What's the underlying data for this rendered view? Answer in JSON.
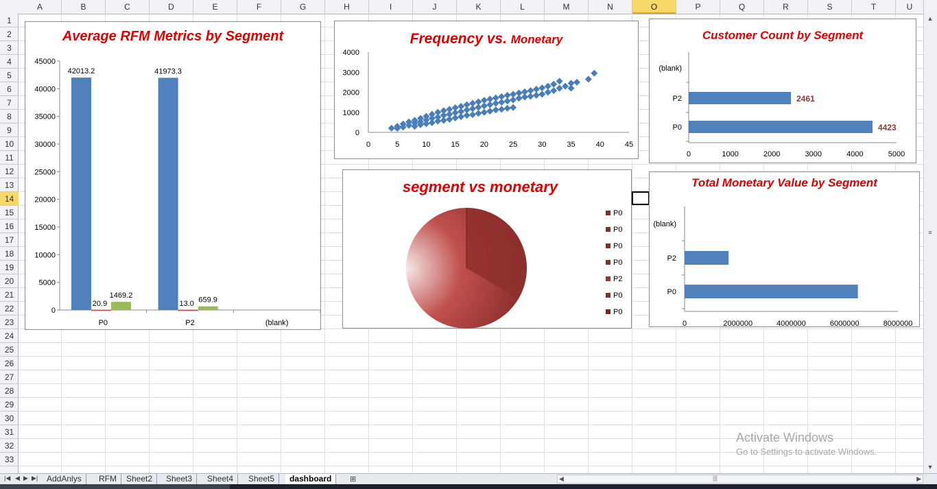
{
  "columns": [
    "A",
    "B",
    "C",
    "D",
    "E",
    "F",
    "G",
    "H",
    "I",
    "J",
    "K",
    "L",
    "M",
    "N",
    "O",
    "P",
    "Q",
    "R",
    "S",
    "T",
    "U"
  ],
  "selected_column": "O",
  "rows": [
    "1",
    "2",
    "3",
    "4",
    "5",
    "6",
    "7",
    "8",
    "9",
    "10",
    "11",
    "12",
    "13",
    "14",
    "15",
    "16",
    "17",
    "18",
    "19",
    "20",
    "21",
    "22",
    "23",
    "24",
    "25",
    "26",
    "27",
    "28",
    "29",
    "30",
    "31",
    "32",
    "33"
  ],
  "selected_row": "14",
  "sheet_tabs": [
    "AddAnlys",
    "RFM",
    "Sheet2",
    "Sheet3",
    "Sheet4",
    "Sheet5",
    "dashboard"
  ],
  "active_tab": "dashboard",
  "tab_nav_icons": [
    "first-sheet-icon",
    "prev-sheet-icon",
    "next-sheet-icon",
    "last-sheet-icon"
  ],
  "watermark": {
    "line1": "Activate Windows",
    "line2": "Go to Settings to activate Windows."
  },
  "chart_data": [
    {
      "type": "bar",
      "title": "Average RFM Metrics by Segment",
      "categories": [
        "P0",
        "P2",
        "(blank)"
      ],
      "series": [
        {
          "color": "#4f81bd",
          "values": [
            42013.2,
            41973.3,
            null
          ]
        },
        {
          "color": "#c0504d",
          "values": [
            20.9,
            13.0,
            null
          ]
        },
        {
          "color": "#9bbb59",
          "values": [
            1469.2,
            659.9,
            null
          ]
        }
      ],
      "data_labels": [
        [
          "42013.2",
          "20.9",
          "1469.2"
        ],
        [
          "41973.3",
          "13.0",
          "659.9"
        ]
      ],
      "yticks": [
        "0",
        "5000",
        "10000",
        "15000",
        "20000",
        "25000",
        "30000",
        "35000",
        "40000",
        "45000"
      ],
      "ylim": [
        0,
        45000
      ]
    },
    {
      "type": "scatter",
      "title_main": "Frequency vs.",
      "title_tail": "Monetary",
      "xticks": [
        "0",
        "5",
        "10",
        "15",
        "20",
        "25",
        "30",
        "35",
        "40",
        "45"
      ],
      "yticks": [
        "0",
        "1000",
        "2000",
        "3000",
        "4000"
      ],
      "xlim": [
        0,
        45
      ],
      "ylim": [
        0,
        4000
      ],
      "color": "#4a7ebb",
      "points": [
        [
          4,
          210
        ],
        [
          5,
          200
        ],
        [
          5,
          300
        ],
        [
          6,
          260
        ],
        [
          6,
          420
        ],
        [
          7,
          350
        ],
        [
          7,
          520
        ],
        [
          8,
          300
        ],
        [
          8,
          460
        ],
        [
          8,
          600
        ],
        [
          9,
          380
        ],
        [
          9,
          520
        ],
        [
          9,
          700
        ],
        [
          10,
          430
        ],
        [
          10,
          620
        ],
        [
          10,
          800
        ],
        [
          11,
          480
        ],
        [
          11,
          700
        ],
        [
          11,
          900
        ],
        [
          12,
          560
        ],
        [
          12,
          760
        ],
        [
          12,
          1000
        ],
        [
          13,
          600
        ],
        [
          13,
          850
        ],
        [
          13,
          1080
        ],
        [
          14,
          650
        ],
        [
          14,
          900
        ],
        [
          14,
          1150
        ],
        [
          15,
          720
        ],
        [
          15,
          980
        ],
        [
          15,
          1230
        ],
        [
          16,
          780
        ],
        [
          16,
          1040
        ],
        [
          16,
          1300
        ],
        [
          17,
          850
        ],
        [
          17,
          1120
        ],
        [
          17,
          1380
        ],
        [
          18,
          880
        ],
        [
          18,
          1180
        ],
        [
          18,
          1450
        ],
        [
          19,
          950
        ],
        [
          19,
          1250
        ],
        [
          19,
          1520
        ],
        [
          20,
          1000
        ],
        [
          20,
          1320
        ],
        [
          20,
          1600
        ],
        [
          21,
          1060
        ],
        [
          21,
          1380
        ],
        [
          21,
          1660
        ],
        [
          22,
          1120
        ],
        [
          22,
          1450
        ],
        [
          22,
          1720
        ],
        [
          23,
          1150
        ],
        [
          23,
          1500
        ],
        [
          23,
          1780
        ],
        [
          24,
          1200
        ],
        [
          24,
          1560
        ],
        [
          24,
          1850
        ],
        [
          25,
          1240
        ],
        [
          25,
          1620
        ],
        [
          25,
          1900
        ],
        [
          26,
          1700
        ],
        [
          26,
          1960
        ],
        [
          27,
          1760
        ],
        [
          27,
          2020
        ],
        [
          28,
          1800
        ],
        [
          28,
          2080
        ],
        [
          29,
          1850
        ],
        [
          29,
          2150
        ],
        [
          30,
          1900
        ],
        [
          30,
          2220
        ],
        [
          31,
          2000
        ],
        [
          31,
          2300
        ],
        [
          32,
          2080
        ],
        [
          32,
          2400
        ],
        [
          33,
          2200
        ],
        [
          33,
          2550
        ],
        [
          34,
          2300
        ],
        [
          35,
          2200
        ],
        [
          35,
          2450
        ],
        [
          36,
          2500
        ],
        [
          38,
          2650
        ],
        [
          39,
          2950
        ]
      ]
    },
    {
      "type": "bar",
      "orientation": "horizontal",
      "title": "Customer Count by Segment",
      "categories": [
        "(blank)",
        "P2",
        "P0"
      ],
      "values": [
        null,
        2461,
        4423
      ],
      "data_labels": [
        "",
        "2461",
        "4423"
      ],
      "color": "#4f81bd",
      "label_color": "#953735",
      "xticks": [
        "0",
        "1000",
        "2000",
        "3000",
        "4000",
        "5000"
      ],
      "xlim": [
        0,
        5000
      ]
    },
    {
      "type": "pie",
      "title": "segment vs monetary",
      "legend": [
        "P0",
        "P0",
        "P0",
        "P0",
        "P2",
        "P0",
        "P0"
      ],
      "legend_colors": [
        "#8b2c2a",
        "#8b2c2a",
        "#8b2c2a",
        "#8b2c2a",
        "#9b3432",
        "#8b2c2a",
        "#7a2625"
      ]
    },
    {
      "type": "bar",
      "orientation": "horizontal",
      "title": "Total Monetary Value by Segment",
      "categories": [
        "(blank)",
        "P2",
        "P0"
      ],
      "values": [
        null,
        1650000,
        6500000
      ],
      "color": "#4f81bd",
      "xticks": [
        "0",
        "2000000",
        "4000000",
        "6000000",
        "8000000"
      ],
      "xlim": [
        0,
        8000000
      ]
    }
  ]
}
